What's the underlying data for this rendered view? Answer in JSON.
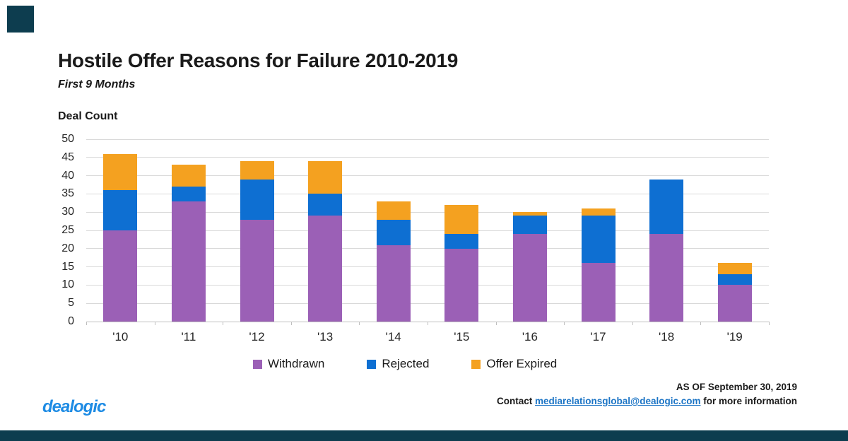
{
  "page": {
    "title": "Hostile Offer Reasons for Failure 2010-2019",
    "subtitle": "First 9 Months",
    "y_axis_title": "Deal Count"
  },
  "chart_data": {
    "type": "bar",
    "stacked": true,
    "title": "Hostile Offer Reasons for Failure 2010-2019",
    "subtitle": "First 9 Months",
    "ylabel": "Deal Count",
    "xlabel": "",
    "ylim": [
      0,
      50
    ],
    "yticks": [
      0,
      5,
      10,
      15,
      20,
      25,
      30,
      35,
      40,
      45,
      50
    ],
    "grid": true,
    "legend_position": "bottom",
    "categories": [
      "'10",
      "'11",
      "'12",
      "'13",
      "'14",
      "'15",
      "'16",
      "'17",
      "'18",
      "'19"
    ],
    "series": [
      {
        "name": "Withdrawn",
        "color": "#9B60B6",
        "values": [
          25,
          33,
          28,
          29,
          21,
          20,
          24,
          16,
          24,
          10
        ]
      },
      {
        "name": "Rejected",
        "color": "#0E6FD2",
        "values": [
          11,
          4,
          11,
          6,
          7,
          4,
          5,
          13,
          15,
          3
        ]
      },
      {
        "name": "Offer Expired",
        "color": "#F4A120",
        "values": [
          10,
          6,
          5,
          9,
          5,
          8,
          1,
          2,
          0,
          3
        ]
      }
    ],
    "stack_totals": [
      46,
      43,
      44,
      44,
      33,
      32,
      30,
      31,
      39,
      16
    ]
  },
  "footer": {
    "logo_text": "dealogic",
    "as_of": "AS OF September 30, 2019",
    "contact_prefix": "Contact ",
    "contact_email": "mediarelationsglobal@dealogic.com",
    "contact_suffix": " for more information"
  },
  "colors": {
    "brand_dark": "#0D3D4F",
    "logo_blue": "#1D8BE4",
    "link_blue": "#1B74C5",
    "gridline": "#D9D9D9",
    "axis": "#BFBFBF",
    "text": "#1A1A1A"
  }
}
